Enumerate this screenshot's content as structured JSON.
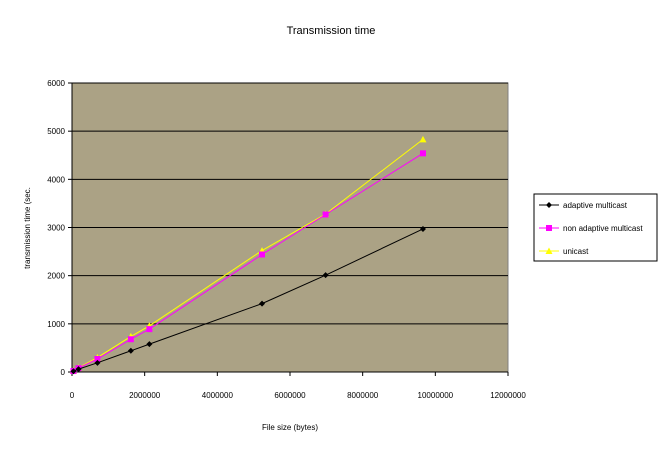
{
  "chart_data": {
    "type": "line",
    "title": "Transmission time",
    "xlabel": "File size (bytes)",
    "ylabel": "transmission time (sec.",
    "xlim": [
      0,
      12000000
    ],
    "ylim": [
      0,
      6000
    ],
    "xticks": [
      0,
      2000000,
      4000000,
      6000000,
      8000000,
      10000000,
      12000000
    ],
    "yticks": [
      0,
      1000,
      2000,
      3000,
      4000,
      5000,
      6000
    ],
    "xtick_labels": [
      "0",
      "2000000",
      "4000000",
      "6000000",
      "8000000",
      "10000000",
      "12000000"
    ],
    "ytick_labels": [
      "0",
      "1000",
      "2000",
      "3000",
      "4000",
      "5000",
      "6000"
    ],
    "grid": "horizontal",
    "plot_background": "#aba285",
    "legend_position": "right",
    "series": [
      {
        "name": "adaptive multicast",
        "color": "#000000",
        "marker": "diamond",
        "x": [
          40000,
          180000,
          700000,
          1620000,
          2130000,
          5230000,
          6980000,
          9660000
        ],
        "y": [
          15,
          60,
          190,
          440,
          580,
          1420,
          2010,
          2970
        ]
      },
      {
        "name": "non adaptive multicast",
        "color": "#ff00ff",
        "marker": "square",
        "x": [
          40000,
          180000,
          700000,
          1620000,
          2130000,
          5230000,
          6980000,
          9660000
        ],
        "y": [
          20,
          80,
          270,
          680,
          890,
          2440,
          3270,
          4540
        ]
      },
      {
        "name": "unicast",
        "color": "#ffff00",
        "marker": "triangle",
        "x": [
          40000,
          180000,
          700000,
          1620000,
          2130000,
          5230000,
          6980000,
          9660000
        ],
        "y": [
          25,
          90,
          300,
          740,
          960,
          2520,
          3280,
          4830
        ]
      }
    ]
  }
}
